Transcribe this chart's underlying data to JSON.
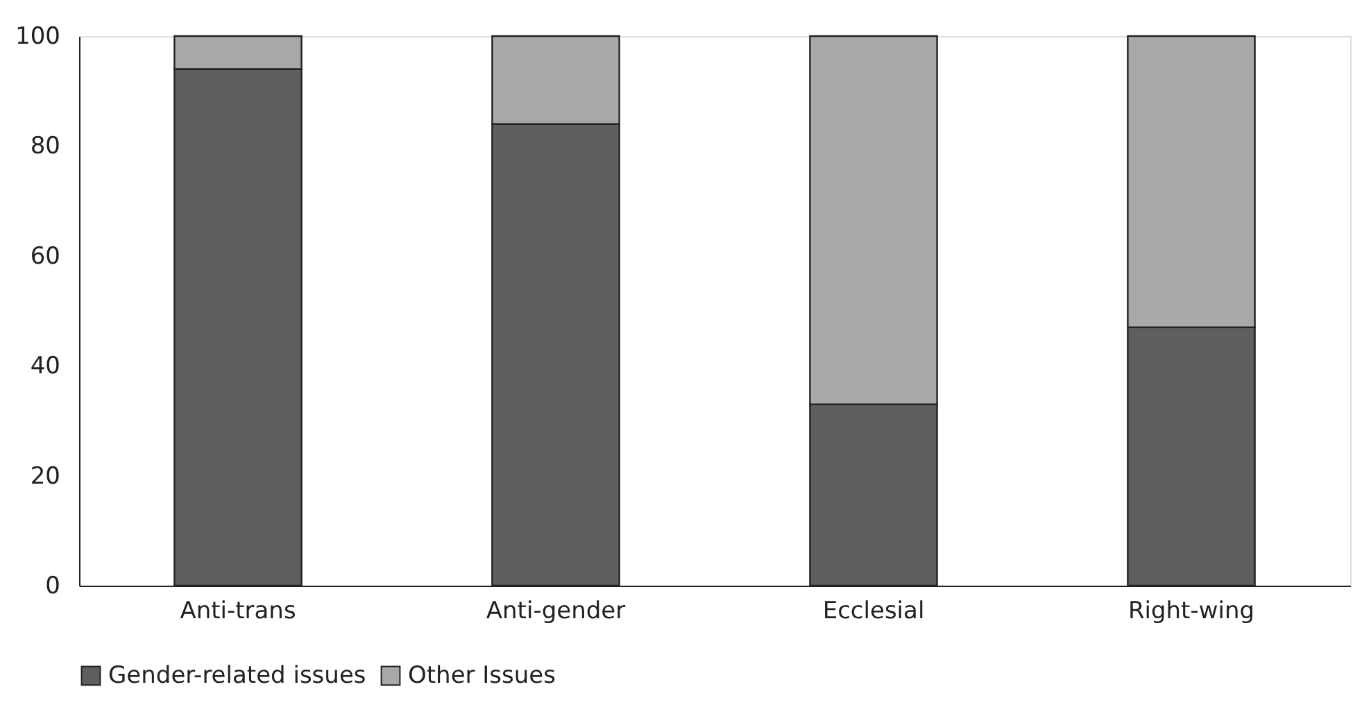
{
  "chart_data": {
    "type": "bar",
    "stacked": true,
    "categories": [
      "Anti-trans",
      "Anti-gender",
      "Ecclesial",
      "Right-wing"
    ],
    "series": [
      {
        "name": "Gender-related issues",
        "color": "#5f5f61",
        "values": [
          94,
          84,
          33,
          47
        ]
      },
      {
        "name": "Other Issues",
        "color": "#a7a8aa",
        "values": [
          6,
          16,
          67,
          53
        ]
      }
    ],
    "ylim": [
      0,
      100
    ],
    "yticks": [
      0,
      20,
      40,
      60,
      80,
      100
    ],
    "grid": false,
    "legend": "bottom"
  }
}
